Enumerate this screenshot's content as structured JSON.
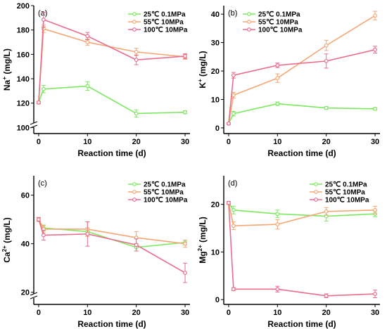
{
  "chart_data": [
    {
      "type": "line",
      "panel_label": "(a)",
      "xlabel": "Reaction time  (d)",
      "ylabel_main": "Na",
      "ylabel_sup": "+",
      "ylabel_unit": " (mg/L)",
      "x": [
        0,
        1,
        10,
        20,
        30
      ],
      "xlim": [
        -1,
        31
      ],
      "xticks": [
        "0",
        "10",
        "20",
        "30"
      ],
      "ylim": [
        95,
        200
      ],
      "yticks": [
        "100",
        "120",
        "140",
        "160",
        "180",
        "200"
      ],
      "axis_break": true,
      "legend_position": "top-right",
      "series": [
        {
          "name": "25℃ 0.1MPa",
          "color": "#7CE860",
          "values": [
            120.5,
            131.5,
            134,
            111.5,
            112.5
          ],
          "err": [
            1,
            3,
            3.5,
            3,
            1.2
          ]
        },
        {
          "name": "55℃ 10MPa",
          "color": "#F5A673",
          "values": [
            120.5,
            181,
            170,
            162,
            158
          ],
          "err": [
            1,
            3,
            2.5,
            3,
            2
          ]
        },
        {
          "name": "100℃ 10MPa",
          "color": "#EC6C8C",
          "values": [
            120.5,
            188.5,
            175,
            155.5,
            158.5
          ],
          "err": [
            1,
            6,
            3,
            4,
            2
          ]
        }
      ]
    },
    {
      "type": "line",
      "panel_label": "(b)",
      "xlabel": "Reaction time  (d)",
      "ylabel_main": "K",
      "ylabel_sup": "+",
      "ylabel_unit": " (mg/L)",
      "x": [
        0,
        1,
        10,
        20,
        30
      ],
      "xlim": [
        -1,
        31
      ],
      "xticks": [
        "0",
        "10",
        "20",
        "30"
      ],
      "ylim": [
        -2,
        43
      ],
      "yticks": [
        "0",
        "10",
        "20",
        "30",
        "40"
      ],
      "axis_break": false,
      "legend_position": "top-left",
      "series": [
        {
          "name": "25℃ 0.1MPa",
          "color": "#7CE860",
          "values": [
            1.5,
            5,
            8.5,
            7,
            6.7
          ],
          "err": [
            0.3,
            0.8,
            0.6,
            0.5,
            0.4
          ]
        },
        {
          "name": "55℃ 10MPa",
          "color": "#F5A673",
          "values": [
            1.5,
            11.5,
            17.5,
            29,
            39.5
          ],
          "err": [
            0.3,
            1,
            1.5,
            1.8,
            1.5
          ]
        },
        {
          "name": "100℃ 10MPa",
          "color": "#EC6C8C",
          "values": [
            1.5,
            18.5,
            22,
            23.5,
            27.5
          ],
          "err": [
            0.3,
            1,
            0.8,
            2.5,
            1.2
          ]
        }
      ]
    },
    {
      "type": "line",
      "panel_label": "(c)",
      "xlabel": "Reaction time  (d)",
      "ylabel_main": "Ca",
      "ylabel_sup": "2+",
      "ylabel_unit": " (mg/L)",
      "x": [
        0,
        1,
        10,
        20,
        30
      ],
      "xlim": [
        -1,
        31
      ],
      "xticks": [
        "0",
        "10",
        "20",
        "30"
      ],
      "ylim": [
        15,
        68
      ],
      "yticks": [
        "20",
        "40",
        "60"
      ],
      "axis_break": true,
      "legend_position": "top-right",
      "series": [
        {
          "name": "25℃ 0.1MPa",
          "color": "#7CE860",
          "values": [
            50,
            46.5,
            45,
            38.5,
            40.5
          ],
          "err": [
            0.8,
            1.2,
            1.5,
            1.5,
            1
          ]
        },
        {
          "name": "55℃ 10MPa",
          "color": "#F5A673",
          "values": [
            50,
            46,
            46,
            42.5,
            40
          ],
          "err": [
            0.8,
            1.5,
            3,
            2.5,
            1.5
          ]
        },
        {
          "name": "100℃ 10MPa",
          "color": "#EC6C8C",
          "values": [
            50,
            43.5,
            44,
            39.5,
            28
          ],
          "err": [
            0.8,
            2,
            5,
            2.5,
            4
          ]
        }
      ]
    },
    {
      "type": "line",
      "panel_label": "(d)",
      "xlabel": "Reaction time  (d)",
      "ylabel_main": "Mg",
      "ylabel_sup": "2+",
      "ylabel_unit": " (mg/L)",
      "x": [
        0,
        1,
        10,
        20,
        30
      ],
      "xlim": [
        -1,
        31
      ],
      "xticks": [
        "0",
        "10",
        "20",
        "30"
      ],
      "ylim": [
        -1,
        26
      ],
      "yticks": [
        "0",
        "10",
        "20"
      ],
      "axis_break": false,
      "legend_position": "top-right",
      "series": [
        {
          "name": "25℃ 0.1MPa",
          "color": "#7CE860",
          "values": [
            20.3,
            18.8,
            18,
            17.5,
            18
          ],
          "err": [
            0.3,
            0.8,
            0.8,
            1,
            0.6
          ]
        },
        {
          "name": "55℃ 10MPa",
          "color": "#F5A673",
          "values": [
            20.3,
            15.5,
            15.8,
            18.5,
            18.8
          ],
          "err": [
            0.3,
            0.8,
            1,
            0.8,
            0.8
          ]
        },
        {
          "name": "100℃ 10MPa",
          "color": "#EC6C8C",
          "values": [
            20.3,
            2.2,
            2.2,
            0.8,
            1.2
          ],
          "err": [
            0.3,
            0.3,
            0.6,
            0.4,
            0.8
          ]
        }
      ]
    }
  ]
}
